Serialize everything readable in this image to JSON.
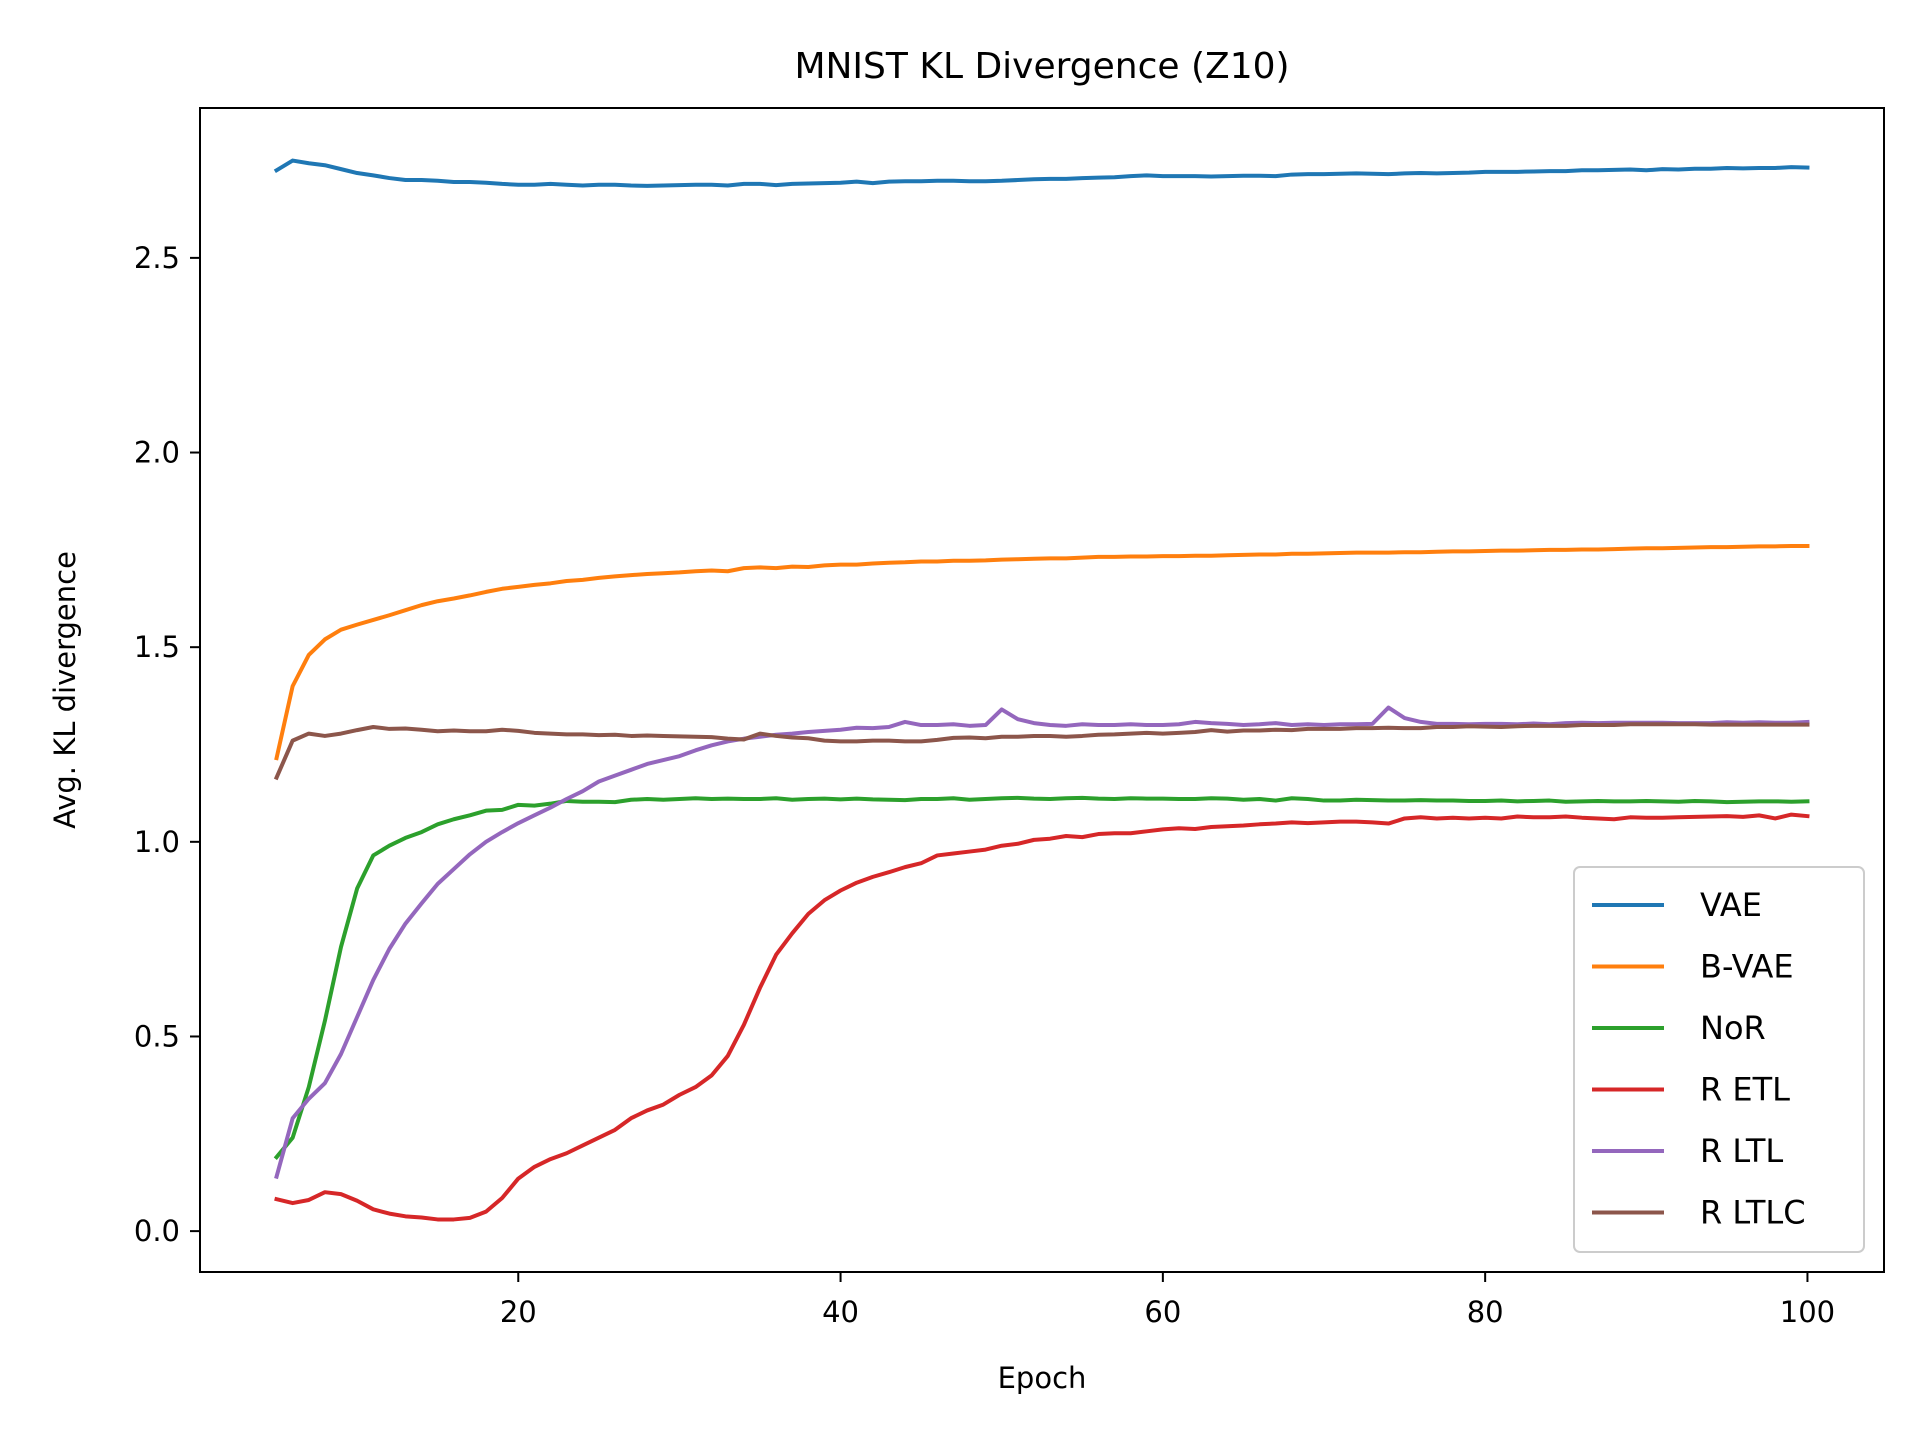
{
  "chart_data": {
    "type": "line",
    "title": "MNIST KL Divergence (Z10)",
    "xlabel": "Epoch",
    "ylabel": "Avg. KL divergence",
    "xlim": [
      0.25,
      104.75
    ],
    "ylim": [
      -0.105,
      2.885
    ],
    "xticks": [
      20,
      40,
      60,
      80,
      100
    ],
    "yticks": [
      0.0,
      0.5,
      1.0,
      1.5,
      2.0,
      2.5
    ],
    "xtick_labels": [
      "20",
      "40",
      "60",
      "80",
      "100"
    ],
    "ytick_labels": [
      "0.0",
      "0.5",
      "1.0",
      "1.5",
      "2.0",
      "2.5"
    ],
    "grid": false,
    "legend_position": "lower-right",
    "x": [
      5,
      6,
      7,
      8,
      9,
      10,
      11,
      12,
      13,
      14,
      15,
      16,
      17,
      18,
      19,
      20,
      21,
      22,
      23,
      24,
      25,
      26,
      27,
      28,
      29,
      30,
      31,
      32,
      33,
      34,
      35,
      36,
      37,
      38,
      39,
      40,
      41,
      42,
      43,
      44,
      45,
      46,
      47,
      48,
      49,
      50,
      51,
      52,
      53,
      54,
      55,
      56,
      57,
      58,
      59,
      60,
      61,
      62,
      63,
      64,
      65,
      66,
      67,
      68,
      69,
      70,
      71,
      72,
      73,
      74,
      75,
      76,
      77,
      78,
      79,
      80,
      81,
      82,
      83,
      84,
      85,
      86,
      87,
      88,
      89,
      90,
      91,
      92,
      93,
      94,
      95,
      96,
      97,
      98,
      99,
      100
    ],
    "series": [
      {
        "name": "VAE",
        "color": "#1f77b4",
        "values": [
          2.725,
          2.75,
          2.743,
          2.738,
          2.728,
          2.718,
          2.712,
          2.705,
          2.7,
          2.7,
          2.698,
          2.695,
          2.695,
          2.693,
          2.69,
          2.688,
          2.688,
          2.69,
          2.688,
          2.686,
          2.688,
          2.688,
          2.686,
          2.685,
          2.686,
          2.687,
          2.688,
          2.688,
          2.686,
          2.69,
          2.69,
          2.687,
          2.69,
          2.691,
          2.692,
          2.693,
          2.696,
          2.692,
          2.696,
          2.697,
          2.697,
          2.698,
          2.698,
          2.697,
          2.697,
          2.698,
          2.7,
          2.702,
          2.703,
          2.703,
          2.705,
          2.706,
          2.707,
          2.71,
          2.712,
          2.71,
          2.71,
          2.71,
          2.709,
          2.71,
          2.711,
          2.711,
          2.71,
          2.714,
          2.715,
          2.715,
          2.716,
          2.717,
          2.716,
          2.715,
          2.717,
          2.718,
          2.717,
          2.718,
          2.719,
          2.721,
          2.721,
          2.721,
          2.722,
          2.723,
          2.723,
          2.725,
          2.725,
          2.726,
          2.727,
          2.725,
          2.728,
          2.727,
          2.729,
          2.729,
          2.731,
          2.73,
          2.731,
          2.731,
          2.733,
          2.732
        ]
      },
      {
        "name": "B-VAE",
        "color": "#ff7f0e",
        "values": [
          1.215,
          1.4,
          1.48,
          1.52,
          1.545,
          1.558,
          1.57,
          1.582,
          1.595,
          1.608,
          1.618,
          1.625,
          1.633,
          1.642,
          1.65,
          1.655,
          1.66,
          1.664,
          1.67,
          1.673,
          1.678,
          1.682,
          1.685,
          1.688,
          1.69,
          1.692,
          1.695,
          1.697,
          1.695,
          1.703,
          1.705,
          1.703,
          1.707,
          1.706,
          1.71,
          1.712,
          1.712,
          1.715,
          1.717,
          1.718,
          1.72,
          1.72,
          1.722,
          1.722,
          1.723,
          1.725,
          1.726,
          1.727,
          1.728,
          1.728,
          1.73,
          1.732,
          1.732,
          1.733,
          1.733,
          1.734,
          1.734,
          1.735,
          1.735,
          1.736,
          1.737,
          1.738,
          1.738,
          1.74,
          1.74,
          1.741,
          1.742,
          1.743,
          1.743,
          1.743,
          1.744,
          1.744,
          1.745,
          1.746,
          1.746,
          1.747,
          1.748,
          1.748,
          1.749,
          1.75,
          1.75,
          1.751,
          1.751,
          1.752,
          1.753,
          1.754,
          1.754,
          1.755,
          1.756,
          1.757,
          1.757,
          1.758,
          1.759,
          1.759,
          1.76,
          1.76
        ]
      },
      {
        "name": "NoR",
        "color": "#2ca02c",
        "values": [
          0.19,
          0.24,
          0.37,
          0.54,
          0.73,
          0.88,
          0.965,
          0.99,
          1.01,
          1.025,
          1.045,
          1.058,
          1.068,
          1.08,
          1.082,
          1.095,
          1.093,
          1.098,
          1.105,
          1.103,
          1.103,
          1.102,
          1.108,
          1.11,
          1.108,
          1.11,
          1.112,
          1.11,
          1.111,
          1.11,
          1.11,
          1.112,
          1.108,
          1.11,
          1.111,
          1.109,
          1.111,
          1.109,
          1.108,
          1.107,
          1.11,
          1.11,
          1.112,
          1.108,
          1.11,
          1.112,
          1.113,
          1.111,
          1.11,
          1.112,
          1.113,
          1.111,
          1.11,
          1.112,
          1.111,
          1.111,
          1.11,
          1.11,
          1.112,
          1.111,
          1.108,
          1.11,
          1.106,
          1.112,
          1.11,
          1.106,
          1.106,
          1.108,
          1.107,
          1.106,
          1.106,
          1.107,
          1.106,
          1.106,
          1.105,
          1.105,
          1.106,
          1.104,
          1.105,
          1.106,
          1.103,
          1.104,
          1.105,
          1.104,
          1.104,
          1.105,
          1.104,
          1.103,
          1.105,
          1.104,
          1.102,
          1.103,
          1.104,
          1.104,
          1.103,
          1.104
        ]
      },
      {
        "name": "R ETL",
        "color": "#d62728",
        "values": [
          0.082,
          0.072,
          0.08,
          0.1,
          0.095,
          0.078,
          0.056,
          0.045,
          0.038,
          0.035,
          0.03,
          0.03,
          0.034,
          0.05,
          0.085,
          0.135,
          0.165,
          0.185,
          0.2,
          0.22,
          0.24,
          0.26,
          0.29,
          0.31,
          0.325,
          0.35,
          0.37,
          0.4,
          0.45,
          0.53,
          0.625,
          0.71,
          0.765,
          0.815,
          0.85,
          0.875,
          0.895,
          0.91,
          0.922,
          0.935,
          0.945,
          0.965,
          0.97,
          0.975,
          0.98,
          0.99,
          0.995,
          1.005,
          1.008,
          1.015,
          1.012,
          1.02,
          1.022,
          1.022,
          1.027,
          1.032,
          1.035,
          1.033,
          1.038,
          1.04,
          1.042,
          1.045,
          1.047,
          1.05,
          1.048,
          1.05,
          1.052,
          1.052,
          1.05,
          1.047,
          1.06,
          1.063,
          1.06,
          1.062,
          1.06,
          1.062,
          1.06,
          1.065,
          1.063,
          1.063,
          1.065,
          1.062,
          1.06,
          1.058,
          1.063,
          1.062,
          1.062,
          1.063,
          1.064,
          1.065,
          1.066,
          1.064,
          1.068,
          1.06,
          1.07,
          1.066
        ]
      },
      {
        "name": "R LTL",
        "color": "#9467bd",
        "values": [
          0.14,
          0.29,
          0.34,
          0.38,
          0.455,
          0.55,
          0.645,
          0.725,
          0.79,
          0.842,
          0.892,
          0.93,
          0.968,
          1.0,
          1.025,
          1.048,
          1.068,
          1.088,
          1.11,
          1.13,
          1.155,
          1.17,
          1.185,
          1.2,
          1.21,
          1.22,
          1.235,
          1.248,
          1.258,
          1.265,
          1.27,
          1.275,
          1.278,
          1.282,
          1.285,
          1.288,
          1.293,
          1.292,
          1.295,
          1.308,
          1.3,
          1.3,
          1.302,
          1.298,
          1.3,
          1.34,
          1.315,
          1.305,
          1.3,
          1.298,
          1.302,
          1.3,
          1.3,
          1.302,
          1.3,
          1.3,
          1.302,
          1.308,
          1.305,
          1.303,
          1.3,
          1.302,
          1.305,
          1.3,
          1.302,
          1.3,
          1.302,
          1.302,
          1.303,
          1.345,
          1.318,
          1.308,
          1.303,
          1.303,
          1.302,
          1.303,
          1.303,
          1.302,
          1.304,
          1.302,
          1.305,
          1.306,
          1.305,
          1.306,
          1.306,
          1.306,
          1.306,
          1.305,
          1.305,
          1.305,
          1.307,
          1.306,
          1.307,
          1.306,
          1.306,
          1.308
        ]
      },
      {
        "name": "R LTLC",
        "color": "#8c564b",
        "values": [
          1.165,
          1.26,
          1.278,
          1.272,
          1.278,
          1.287,
          1.295,
          1.29,
          1.291,
          1.288,
          1.284,
          1.286,
          1.284,
          1.284,
          1.288,
          1.285,
          1.28,
          1.278,
          1.276,
          1.276,
          1.274,
          1.275,
          1.272,
          1.273,
          1.272,
          1.271,
          1.27,
          1.269,
          1.265,
          1.263,
          1.278,
          1.272,
          1.268,
          1.266,
          1.26,
          1.258,
          1.258,
          1.26,
          1.26,
          1.258,
          1.258,
          1.262,
          1.267,
          1.268,
          1.266,
          1.27,
          1.27,
          1.272,
          1.272,
          1.27,
          1.272,
          1.275,
          1.276,
          1.278,
          1.28,
          1.278,
          1.28,
          1.282,
          1.287,
          1.283,
          1.286,
          1.286,
          1.288,
          1.287,
          1.29,
          1.29,
          1.29,
          1.292,
          1.292,
          1.293,
          1.292,
          1.292,
          1.295,
          1.295,
          1.297,
          1.296,
          1.295,
          1.297,
          1.298,
          1.298,
          1.298,
          1.3,
          1.3,
          1.3,
          1.302,
          1.302,
          1.302,
          1.302,
          1.302,
          1.301,
          1.301,
          1.301,
          1.301,
          1.301,
          1.301,
          1.301
        ]
      }
    ]
  }
}
